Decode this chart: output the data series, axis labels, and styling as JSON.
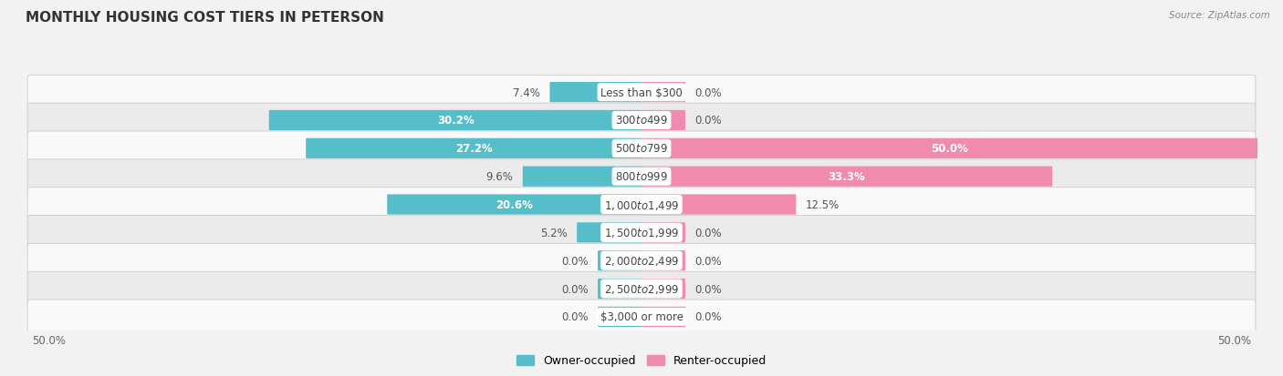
{
  "title": "MONTHLY HOUSING COST TIERS IN PETERSON",
  "source": "Source: ZipAtlas.com",
  "categories": [
    "Less than $300",
    "$300 to $499",
    "$500 to $799",
    "$800 to $999",
    "$1,000 to $1,499",
    "$1,500 to $1,999",
    "$2,000 to $2,499",
    "$2,500 to $2,999",
    "$3,000 or more"
  ],
  "owner_values": [
    7.4,
    30.2,
    27.2,
    9.6,
    20.6,
    5.2,
    0.0,
    0.0,
    0.0
  ],
  "renter_values": [
    0.0,
    0.0,
    50.0,
    33.3,
    12.5,
    0.0,
    0.0,
    0.0,
    0.0
  ],
  "owner_color": "#55BEC8",
  "renter_color": "#F08AAE",
  "background_color": "#f2f2f2",
  "row_color_light": "#f9f9f9",
  "row_color_dark": "#ebebeb",
  "max_value": 50.0,
  "stub_size": 3.5,
  "x_left_label": "50.0%",
  "x_right_label": "50.0%",
  "legend_owner": "Owner-occupied",
  "legend_renter": "Renter-occupied",
  "title_fontsize": 11,
  "label_fontsize": 8.5,
  "cat_fontsize": 8.5
}
